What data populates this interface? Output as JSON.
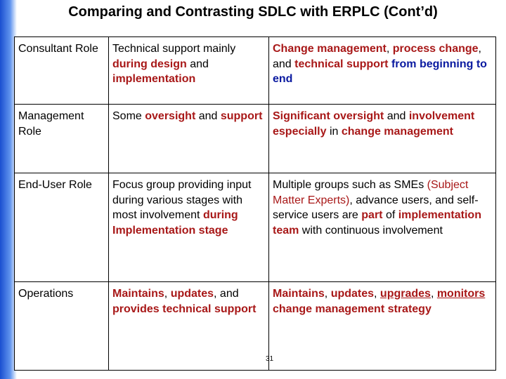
{
  "title": "Comparing and Contrasting SDLC with ERPLC (Cont’d)",
  "table": {
    "rows": [
      [
        [
          "Consultant Role"
        ],
        [
          "Technical support mainly ",
          "during design",
          " and ",
          "implementation"
        ],
        [
          "Change management",
          ", ",
          "process change",
          ", and ",
          "technical support",
          " from beginning to end"
        ]
      ],
      [
        [
          "Management Role"
        ],
        [
          "Some ",
          "oversight",
          " and ",
          "support"
        ],
        [
          "Significant oversight",
          " and ",
          "involvement especially",
          " in ",
          "change management"
        ]
      ],
      [
        [
          "End-User Role"
        ],
        [
          "Focus group providing input during various stages with most involvement ",
          "during Implementation stage"
        ],
        [
          "Multiple groups such as SMEs ",
          "(Subject Matter Experts)",
          ", advance users, and self-service users are ",
          "part",
          " of ",
          "implementation team",
          " with continuous involvement"
        ]
      ],
      [
        [
          "Operations"
        ],
        [
          "Maintains",
          ", ",
          "updates",
          ", and ",
          "provides technical support"
        ],
        [
          "Maintains",
          ", ",
          "updates",
          ", ",
          "upgrades",
          ", ",
          "monitors",
          " change management strategy"
        ]
      ]
    ]
  },
  "page_number": "31"
}
